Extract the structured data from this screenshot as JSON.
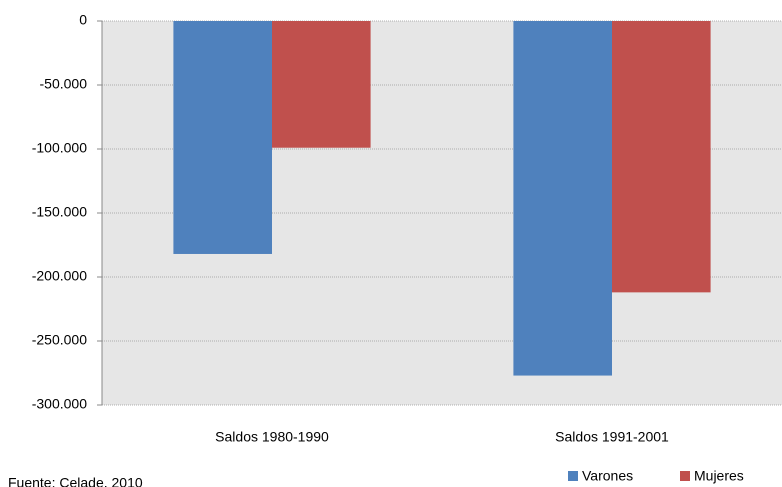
{
  "chart_data": {
    "type": "bar",
    "categories": [
      "Saldos 1980-1990",
      "Saldos 1991-2001"
    ],
    "series": [
      {
        "name": "Varones",
        "color": "#4f81bd",
        "values": [
          -182000,
          -277000
        ]
      },
      {
        "name": "Mujeres",
        "color": "#c0504d",
        "values": [
          -99000,
          -212000
        ]
      }
    ],
    "ylim": [
      -300000,
      0
    ],
    "yticks": [
      0,
      {
        "value": -50000,
        "label": "-50.000"
      },
      {
        "value": -100000,
        "label": "-100.000"
      },
      {
        "value": -150000,
        "label": "-150.000"
      },
      {
        "value": -200000,
        "label": "-200.000"
      },
      {
        "value": -250000,
        "label": "-250.000"
      },
      {
        "value": -300000,
        "label": "-300.000"
      }
    ],
    "grid": true,
    "legend": "bottom-right",
    "source": "Fuente: Celade, 2010"
  }
}
